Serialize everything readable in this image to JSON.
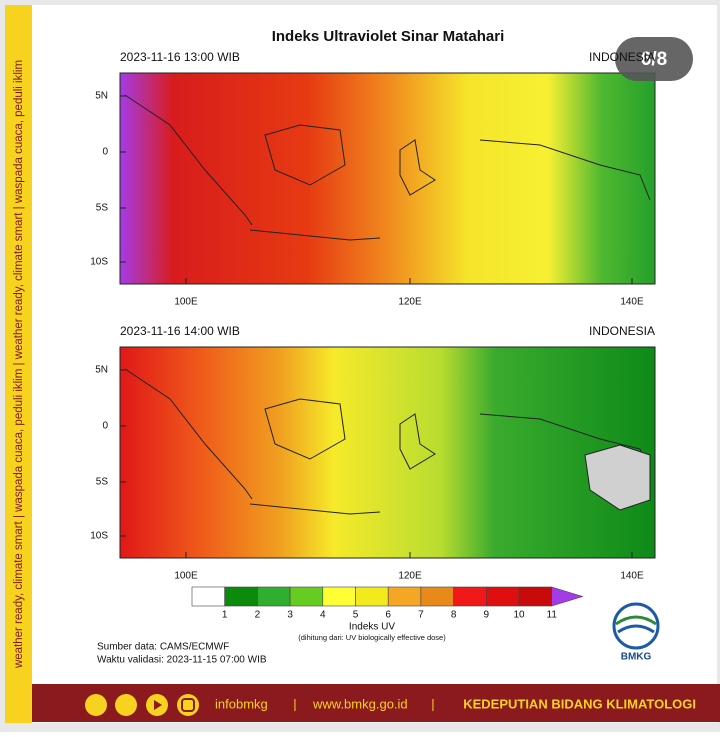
{
  "title": "Indeks Ultraviolet Sinar Matahari",
  "page_counter": "6/8",
  "side_text": "weather ready, climate smart | waspada cuaca, peduli iklim | weather ready, climate smart | waspada cuaca, peduli iklim",
  "panels": [
    {
      "timestamp": "2023-11-16  13:00 WIB",
      "region": "INDONESIA",
      "lat_labels": [
        "5N",
        "0",
        "5S",
        "10S"
      ],
      "lon_labels": [
        "100E",
        "120E",
        "140E"
      ]
    },
    {
      "timestamp": "2023-11-16  14:00 WIB",
      "region": "INDONESIA",
      "lat_labels": [
        "5N",
        "0",
        "5S",
        "10S"
      ],
      "lon_labels": [
        "100E",
        "120E",
        "140E"
      ]
    }
  ],
  "legend": {
    "title": "Indeks UV",
    "subtitle": "(dihitung dari: UV biologically effective dose)",
    "ticks": [
      "1",
      "2",
      "3",
      "4",
      "5",
      "6",
      "7",
      "8",
      "9",
      "10",
      "11"
    ],
    "colors": [
      "#ffffff",
      "#0b8a0b",
      "#2fae2f",
      "#66cc22",
      "#ffff33",
      "#f2ea1c",
      "#f5a623",
      "#e88a1a",
      "#f01818",
      "#e00f0f",
      "#c80a0a",
      "#a33be8"
    ]
  },
  "source": "Sumber data: CAMS/ECMWF",
  "validity": "Waktu validasi: 2023-11-15 07:00 WIB",
  "logo_text": "BMKG",
  "footer": {
    "handle": "infobmkg",
    "separator": "|",
    "website": "www.bmkg.go.id",
    "office": "KEDEPUTIAN BIDANG KLIMATOLOGI"
  }
}
